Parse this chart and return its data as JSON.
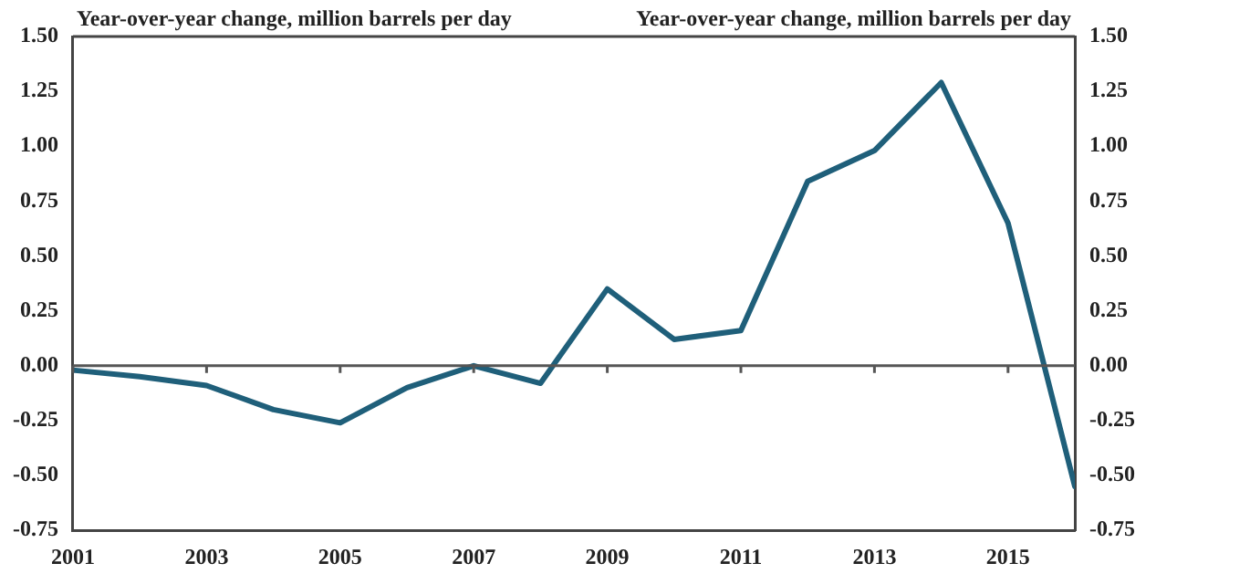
{
  "chart_data": {
    "type": "line",
    "ylabel": "Year-over-year change, million barrels per day",
    "y2label": "Year-over-year change, million barrels per day",
    "x": [
      2001,
      2002,
      2003,
      2004,
      2005,
      2006,
      2007,
      2008,
      2009,
      2010,
      2011,
      2012,
      2013,
      2014,
      2015,
      2016
    ],
    "series": [
      {
        "color": "#1f5f7a",
        "values": [
          -0.02,
          -0.05,
          -0.09,
          -0.2,
          -0.26,
          -0.1,
          0.0,
          -0.08,
          0.35,
          0.12,
          0.16,
          0.84,
          0.98,
          1.29,
          0.65,
          -0.55
        ]
      }
    ],
    "xlim": [
      2001,
      2016
    ],
    "xticks": [
      2001,
      2003,
      2005,
      2007,
      2009,
      2011,
      2013,
      2015
    ],
    "ylim": [
      -0.75,
      1.5
    ],
    "yticks": [
      {
        "value": -0.75,
        "label": "-0.75"
      },
      {
        "value": -0.5,
        "label": "-0.50"
      },
      {
        "value": -0.25,
        "label": "-0.25"
      },
      {
        "value": 0,
        "label": "0.00"
      },
      {
        "value": 0.25,
        "label": "0.25"
      },
      {
        "value": 0.5,
        "label": "0.50"
      },
      {
        "value": 0.75,
        "label": "0.75"
      },
      {
        "value": 1,
        "label": "1.00"
      },
      {
        "value": 1.25,
        "label": "1.25"
      },
      {
        "value": 1.5,
        "label": "1.50"
      }
    ],
    "y2lim": [
      -0.75,
      1.5
    ],
    "y2ticks": [
      {
        "value": -0.75,
        "label": "-0.75"
      },
      {
        "value": -0.5,
        "label": "-0.50"
      },
      {
        "value": -0.25,
        "label": "-0.25"
      },
      {
        "value": 0,
        "label": "0.00"
      },
      {
        "value": 0.25,
        "label": "0.25"
      },
      {
        "value": 0.5,
        "label": "0.50"
      },
      {
        "value": 0.75,
        "label": "0.75"
      },
      {
        "value": 1,
        "label": "1.00"
      },
      {
        "value": 1.25,
        "label": "1.25"
      },
      {
        "value": 1.5,
        "label": "1.50"
      }
    ],
    "ref_lines": [
      {
        "axis": "y",
        "value": 0,
        "color": "#555555"
      }
    ],
    "grid": false,
    "legend": false,
    "marker": "none",
    "line_style": "solid"
  }
}
